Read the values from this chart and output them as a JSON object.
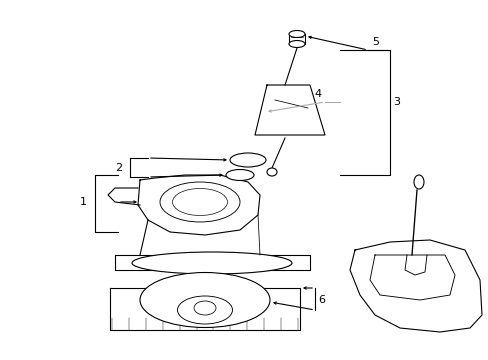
{
  "bg_color": "#ffffff",
  "line_color": "#000000",
  "gray_color": "#aaaaaa",
  "fig_width": 4.89,
  "fig_height": 3.6,
  "dpi": 100,
  "label_fs": 8,
  "lw": 0.8
}
